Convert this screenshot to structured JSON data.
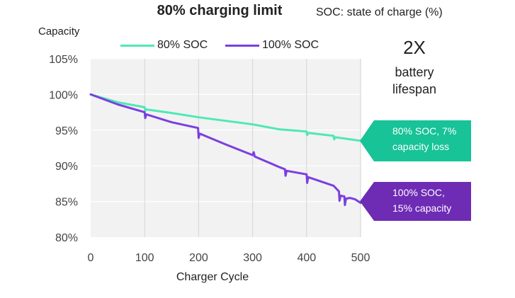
{
  "header": {
    "title": "80% charging limit",
    "subtitle": "SOC: state of charge (%)"
  },
  "annotations": {
    "multiplier": "2X",
    "lifespan_line1": "battery",
    "lifespan_line2": "lifespan",
    "callout_80_line1": "80% SOC, 7%",
    "callout_80_line2": "capacity loss",
    "callout_100_line1": "100% SOC,",
    "callout_100_line2": "15% capacity"
  },
  "colors": {
    "series_80": "#4fe8b4",
    "series_100": "#7a3fe0",
    "callout_80": "#17c397",
    "callout_100": "#6e2bb4",
    "grid": "#d9d9d9",
    "plot_bg": "#f2f2f2"
  },
  "chart_data": {
    "type": "line",
    "title": "80% charging limit",
    "subtitle": "SOC: state of charge (%)",
    "xlabel": "Charger Cycle",
    "ylabel": "Capacity",
    "xlim": [
      0,
      500
    ],
    "ylim": [
      80,
      105
    ],
    "x_ticks": [
      "0",
      "100",
      "200",
      "300",
      "400",
      "500"
    ],
    "y_ticks": [
      "80%",
      "85%",
      "90%",
      "95%",
      "100%",
      "105%"
    ],
    "grid": true,
    "legend": "top",
    "series": [
      {
        "name": "80% SOC",
        "color": "#4fe8b4",
        "x": [
          0,
          50,
          100,
          101,
          103,
          150,
          200,
          250,
          300,
          350,
          400,
          401,
          403,
          450,
          451,
          453,
          500
        ],
        "y": [
          100,
          98.9,
          98.2,
          97.7,
          97.9,
          97.4,
          96.8,
          96.3,
          95.8,
          95.1,
          94.8,
          94.3,
          94.6,
          94.2,
          93.7,
          94.0,
          93.5
        ]
      },
      {
        "name": "100% SOC",
        "color": "#7a3fe0",
        "x": [
          0,
          50,
          100,
          101,
          103,
          150,
          199,
          200,
          202,
          250,
          300,
          302,
          304,
          350,
          360,
          361,
          363,
          400,
          401,
          403,
          450,
          460,
          461,
          463,
          470,
          471,
          473,
          480,
          490,
          500
        ],
        "y": [
          100,
          98.6,
          97.5,
          96.7,
          97.2,
          96.1,
          95.3,
          93.9,
          94.5,
          93.0,
          91.5,
          91.9,
          91.3,
          89.8,
          89.5,
          88.6,
          89.3,
          88.8,
          87.6,
          88.4,
          87.2,
          86.4,
          85.1,
          85.8,
          85.7,
          84.5,
          85.4,
          85.5,
          85.3,
          84.8
        ]
      }
    ]
  }
}
